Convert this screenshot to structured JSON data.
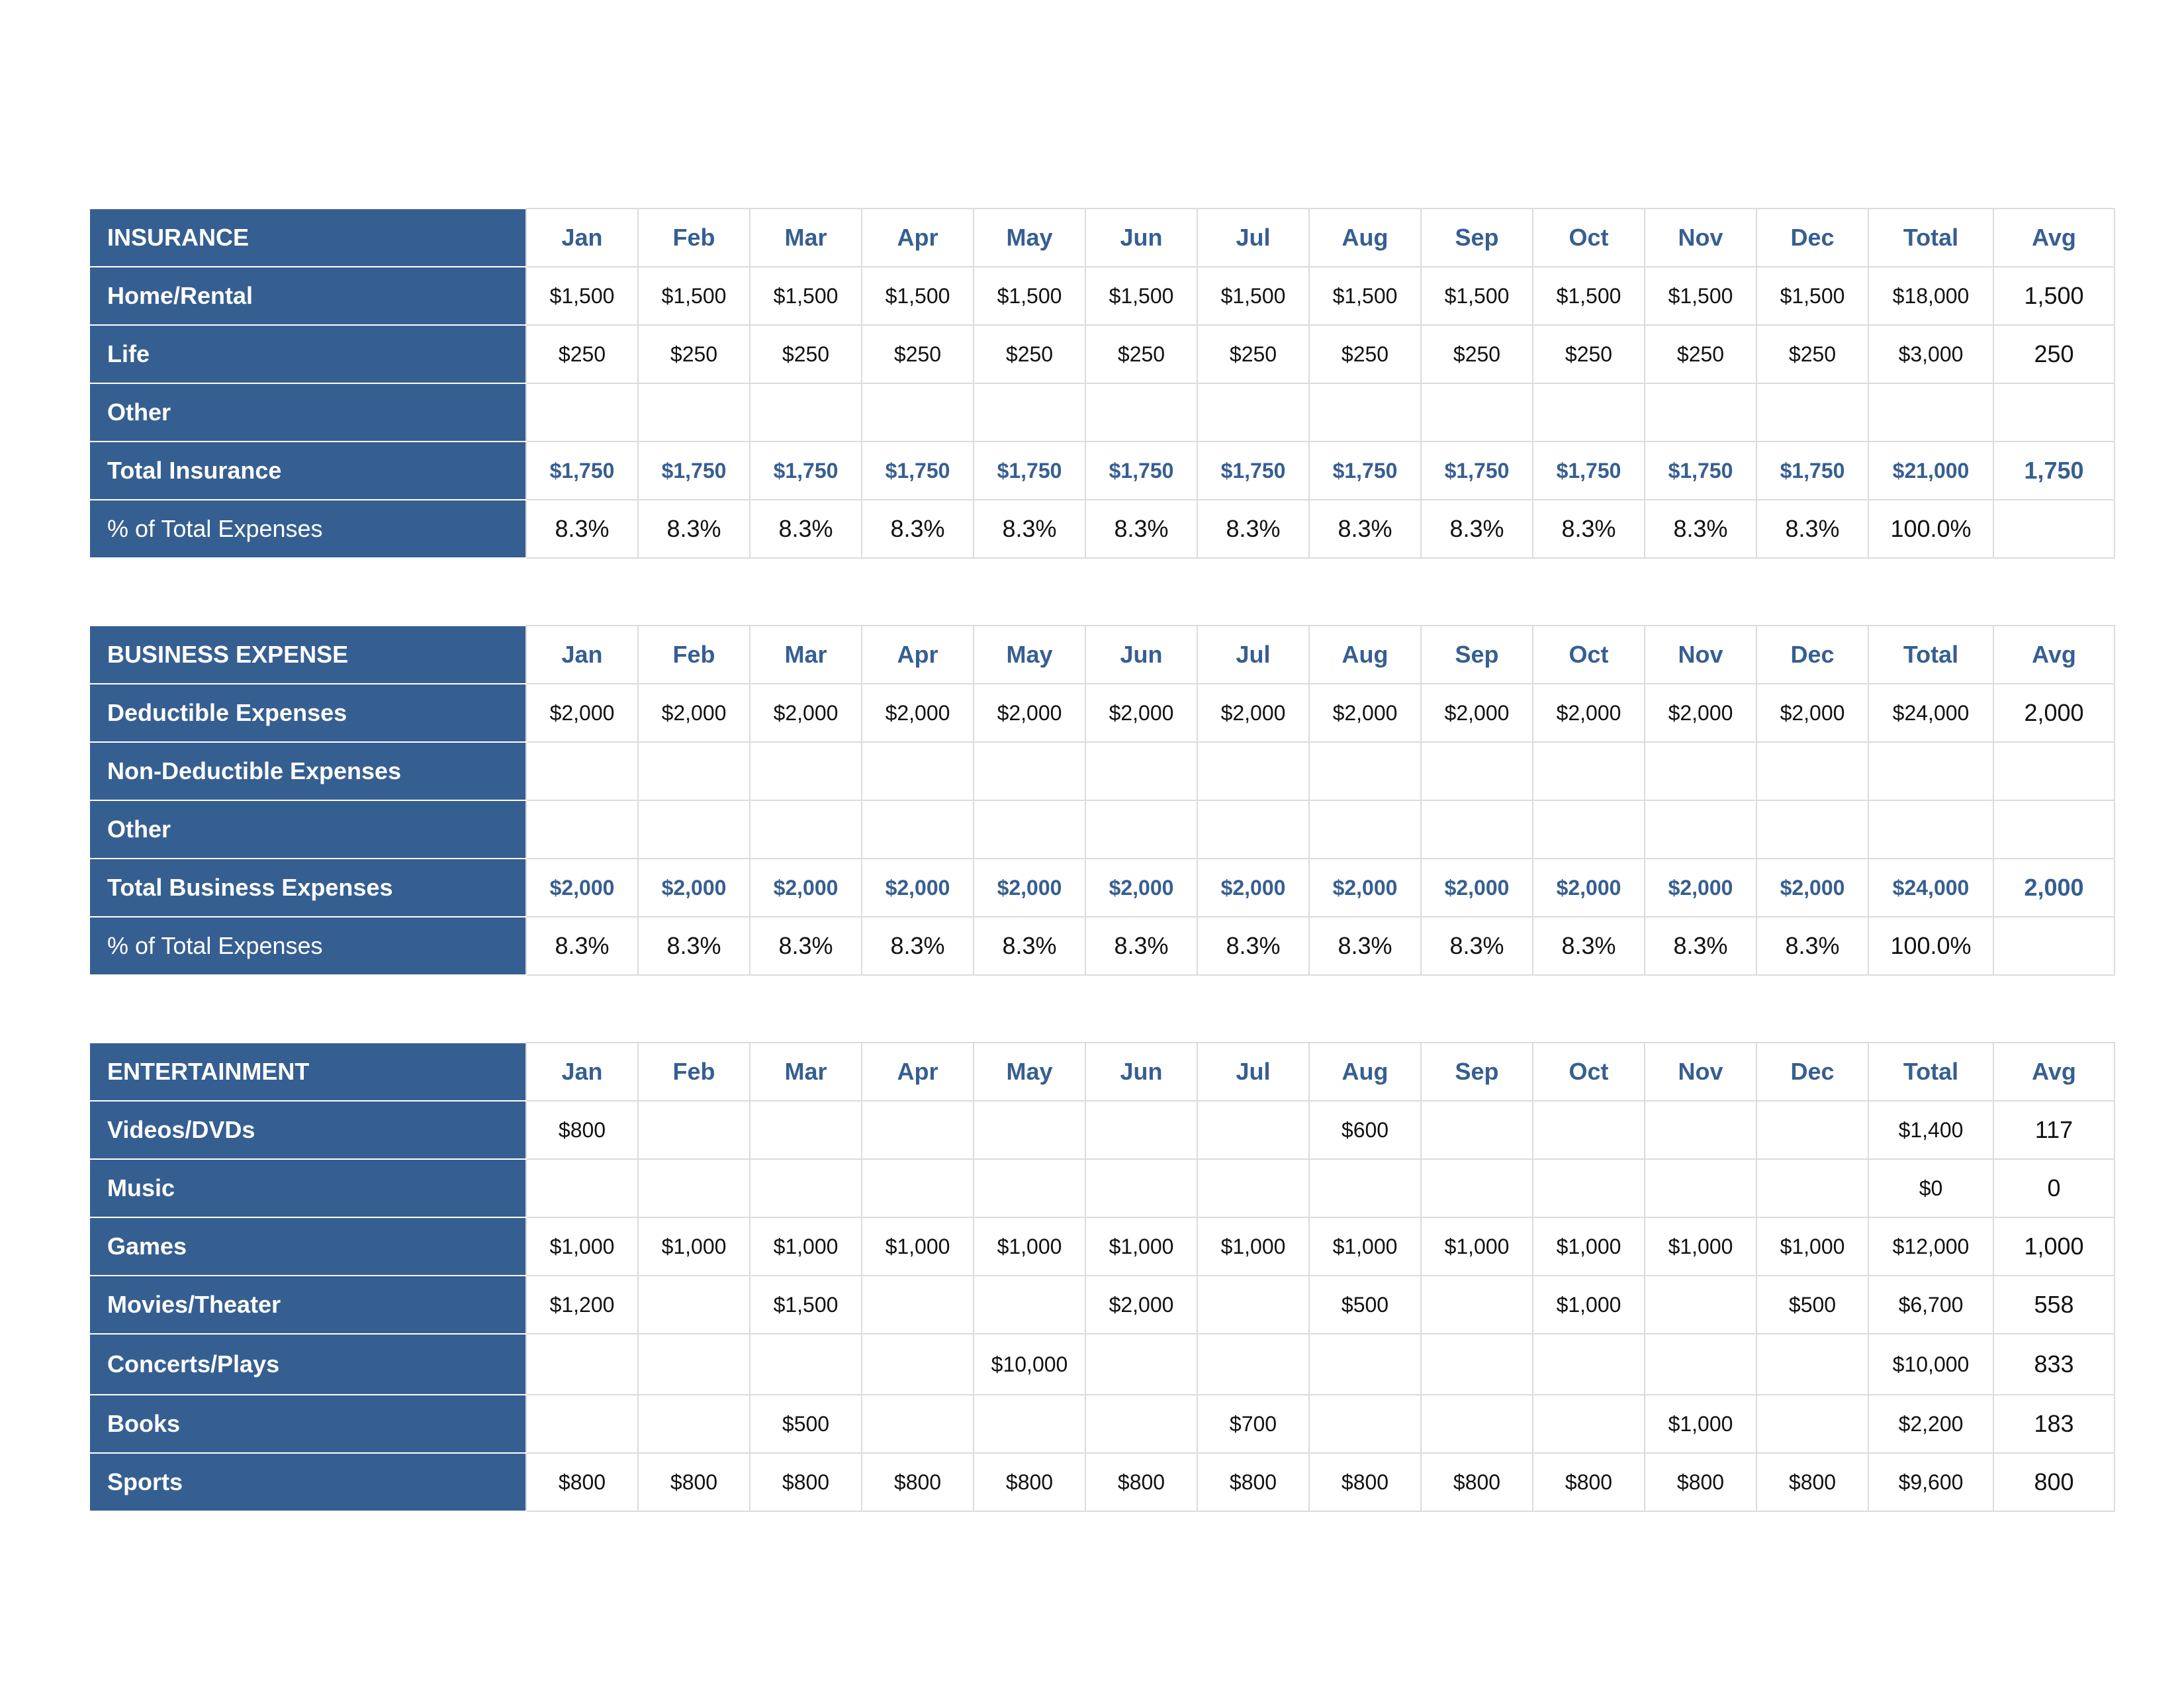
{
  "months": [
    "Jan",
    "Feb",
    "Mar",
    "Apr",
    "May",
    "Jun",
    "Jul",
    "Aug",
    "Sep",
    "Oct",
    "Nov",
    "Dec"
  ],
  "total_header": "Total",
  "avg_header": "Avg",
  "colors": {
    "header_bg": "#365f91",
    "accent_text": "#365f91",
    "grid": "#dcdcdc"
  },
  "tables": [
    {
      "title": "INSURANCE",
      "rows": [
        {
          "label": "Home/Rental",
          "kind": "item",
          "cells": [
            "$1,500",
            "$1,500",
            "$1,500",
            "$1,500",
            "$1,500",
            "$1,500",
            "$1,500",
            "$1,500",
            "$1,500",
            "$1,500",
            "$1,500",
            "$1,500"
          ],
          "total": "$18,000",
          "avg": "1,500"
        },
        {
          "label": "Life",
          "kind": "item",
          "cells": [
            "$250",
            "$250",
            "$250",
            "$250",
            "$250",
            "$250",
            "$250",
            "$250",
            "$250",
            "$250",
            "$250",
            "$250"
          ],
          "total": "$3,000",
          "avg": "250"
        },
        {
          "label": "Other",
          "kind": "item",
          "cells": [
            "",
            "",
            "",
            "",
            "",
            "",
            "",
            "",
            "",
            "",
            "",
            ""
          ],
          "total": "",
          "avg": ""
        },
        {
          "label": "Total Insurance",
          "kind": "total",
          "cells": [
            "$1,750",
            "$1,750",
            "$1,750",
            "$1,750",
            "$1,750",
            "$1,750",
            "$1,750",
            "$1,750",
            "$1,750",
            "$1,750",
            "$1,750",
            "$1,750"
          ],
          "total": "$21,000",
          "avg": "1,750"
        },
        {
          "label": "% of Total Expenses",
          "kind": "pct",
          "cells": [
            "8.3%",
            "8.3%",
            "8.3%",
            "8.3%",
            "8.3%",
            "8.3%",
            "8.3%",
            "8.3%",
            "8.3%",
            "8.3%",
            "8.3%",
            "8.3%"
          ],
          "total": "100.0%",
          "avg": ""
        }
      ]
    },
    {
      "title": "BUSINESS EXPENSE",
      "rows": [
        {
          "label": "Deductible Expenses",
          "kind": "item",
          "cells": [
            "$2,000",
            "$2,000",
            "$2,000",
            "$2,000",
            "$2,000",
            "$2,000",
            "$2,000",
            "$2,000",
            "$2,000",
            "$2,000",
            "$2,000",
            "$2,000"
          ],
          "total": "$24,000",
          "avg": "2,000"
        },
        {
          "label": "Non-Deductible Expenses",
          "kind": "item",
          "cells": [
            "",
            "",
            "",
            "",
            "",
            "",
            "",
            "",
            "",
            "",
            "",
            ""
          ],
          "total": "",
          "avg": ""
        },
        {
          "label": "Other",
          "kind": "item",
          "cells": [
            "",
            "",
            "",
            "",
            "",
            "",
            "",
            "",
            "",
            "",
            "",
            ""
          ],
          "total": "",
          "avg": ""
        },
        {
          "label": "Total Business Expenses",
          "kind": "total",
          "cells": [
            "$2,000",
            "$2,000",
            "$2,000",
            "$2,000",
            "$2,000",
            "$2,000",
            "$2,000",
            "$2,000",
            "$2,000",
            "$2,000",
            "$2,000",
            "$2,000"
          ],
          "total": "$24,000",
          "avg": "2,000"
        },
        {
          "label": "% of Total Expenses",
          "kind": "pct",
          "cells": [
            "8.3%",
            "8.3%",
            "8.3%",
            "8.3%",
            "8.3%",
            "8.3%",
            "8.3%",
            "8.3%",
            "8.3%",
            "8.3%",
            "8.3%",
            "8.3%"
          ],
          "total": "100.0%",
          "avg": ""
        }
      ]
    },
    {
      "title": "ENTERTAINMENT",
      "rows": [
        {
          "label": "Videos/DVDs",
          "kind": "item",
          "cells": [
            "$800",
            "",
            "",
            "",
            "",
            "",
            "",
            "$600",
            "",
            "",
            "",
            ""
          ],
          "total": "$1,400",
          "avg": "117"
        },
        {
          "label": "Music",
          "kind": "item",
          "cells": [
            "",
            "",
            "",
            "",
            "",
            "",
            "",
            "",
            "",
            "",
            "",
            ""
          ],
          "total": "$0",
          "avg": "0"
        },
        {
          "label": "Games",
          "kind": "item",
          "cells": [
            "$1,000",
            "$1,000",
            "$1,000",
            "$1,000",
            "$1,000",
            "$1,000",
            "$1,000",
            "$1,000",
            "$1,000",
            "$1,000",
            "$1,000",
            "$1,000"
          ],
          "total": "$12,000",
          "avg": "1,000"
        },
        {
          "label": "Movies/Theater",
          "kind": "item",
          "cells": [
            "$1,200",
            "",
            "$1,500",
            "",
            "",
            "$2,000",
            "",
            "$500",
            "",
            "$1,000",
            "",
            "$500"
          ],
          "total": "$6,700",
          "avg": "558"
        },
        {
          "label": "Concerts/Plays",
          "kind": "item",
          "cells": [
            "",
            "",
            "",
            "",
            "$10,000",
            "",
            "",
            "",
            "",
            "",
            "",
            ""
          ],
          "total": "$10,000",
          "avg": "833"
        },
        {
          "label": "Books",
          "kind": "item",
          "cells": [
            "",
            "",
            "$500",
            "",
            "",
            "",
            "$700",
            "",
            "",
            "",
            "$1,000",
            ""
          ],
          "total": "$2,200",
          "avg": "183"
        },
        {
          "label": "Sports",
          "kind": "item",
          "cells": [
            "$800",
            "$800",
            "$800",
            "$800",
            "$800",
            "$800",
            "$800",
            "$800",
            "$800",
            "$800",
            "$800",
            "$800"
          ],
          "total": "$9,600",
          "avg": "800"
        }
      ]
    }
  ]
}
